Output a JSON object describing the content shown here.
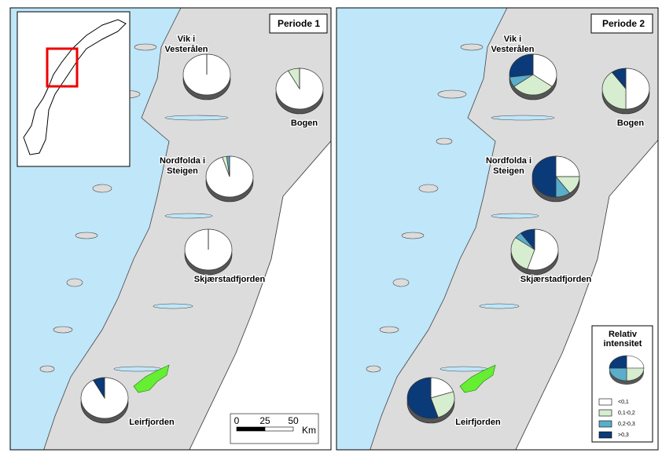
{
  "panels": [
    {
      "title": "Periode 1",
      "sites": [
        {
          "label": [
            "Vik i",
            "Vesterålen"
          ],
          "values": [
            100,
            0,
            0,
            0
          ]
        },
        {
          "label": [
            "Bogen"
          ],
          "values": [
            92,
            8,
            0,
            0
          ]
        },
        {
          "label": [
            "Nordfolda i",
            "Steigen"
          ],
          "values": [
            95,
            3,
            2,
            0
          ]
        },
        {
          "label": [
            "Skjærstadfjorden"
          ],
          "values": [
            100,
            0,
            0,
            0
          ]
        },
        {
          "label": [
            "Leirfjorden"
          ],
          "values": [
            92,
            0,
            0,
            8
          ]
        }
      ]
    },
    {
      "title": "Periode 2",
      "sites": [
        {
          "label": [
            "Vik i",
            "Vesterålen"
          ],
          "values": [
            35,
            30,
            8,
            27
          ]
        },
        {
          "label": [
            "Bogen"
          ],
          "values": [
            50,
            40,
            0,
            10
          ]
        },
        {
          "label": [
            "Nordfolda i",
            "Steigen"
          ],
          "values": [
            25,
            15,
            10,
            50
          ]
        },
        {
          "label": [
            "Skjærstadfjorden"
          ],
          "values": [
            55,
            30,
            5,
            10
          ]
        },
        {
          "label": [
            "Leirfjorden"
          ],
          "values": [
            20,
            25,
            0,
            55
          ]
        }
      ]
    }
  ],
  "legend": {
    "title": [
      "Relativ",
      "intensitet"
    ],
    "classes": [
      {
        "label": "<0,1",
        "color": "#ffffff"
      },
      {
        "label": "0,1-0,2",
        "color": "#d6edcf"
      },
      {
        "label": "0,2-0,3",
        "color": "#5aaecb"
      },
      {
        "label": ">0,3",
        "color": "#0b3a78"
      }
    ]
  },
  "scale_bar": {
    "ticks": [
      0,
      25,
      50
    ],
    "unit": "Km"
  }
}
